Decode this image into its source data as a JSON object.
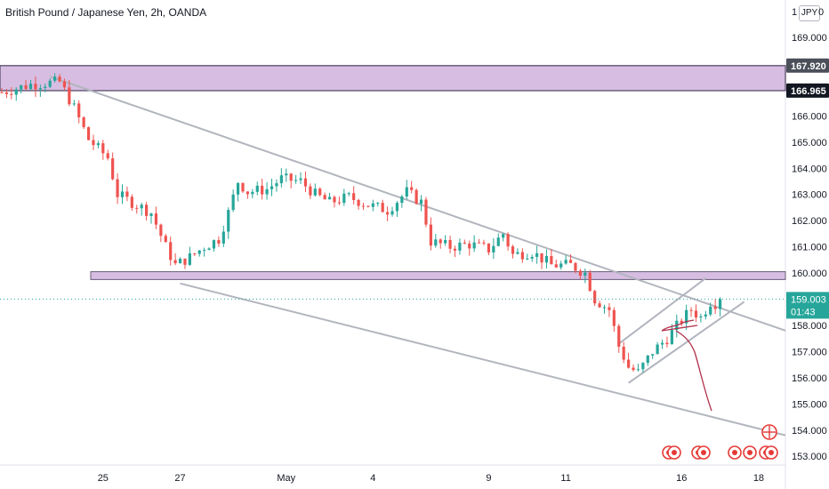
{
  "header": {
    "title": "British Pound / Japanese Yen, 2h, OANDA",
    "currency_badge": "JPY",
    "currency_badge_suffix": "0",
    "top_tick": "1"
  },
  "price_label": {
    "value": "159.003",
    "countdown": "01:43"
  },
  "zone_labels": {
    "upper": "167.920",
    "lower": "166.965"
  },
  "colors": {
    "up": "#26a69a",
    "down": "#ef5350",
    "zone": "#d7bde2",
    "zone_border": "#6a5f7a",
    "trend": "#b2b5be",
    "scribble": "#b0304a",
    "price_line": "#26a69a",
    "marker": "#e53935"
  },
  "chart_data": {
    "type": "candlestick",
    "title": "British Pound / Japanese Yen, 2h, OANDA",
    "y_ticks": [
      153,
      154,
      155,
      156,
      157,
      158,
      159,
      160,
      161,
      162,
      163,
      164,
      165,
      166,
      167,
      169
    ],
    "y_range": [
      152.5,
      170.2
    ],
    "x_ticks": [
      {
        "label": "25",
        "index": 21
      },
      {
        "label": "27",
        "index": 37
      },
      {
        "label": "May",
        "index": 59
      },
      {
        "label": "4",
        "index": 77
      },
      {
        "label": "9",
        "index": 101
      },
      {
        "label": "11",
        "index": 117
      },
      {
        "label": "16",
        "index": 141
      },
      {
        "label": "18",
        "index": 157
      }
    ],
    "candle_count": 150,
    "waypoints": [
      [
        0,
        166.9
      ],
      [
        6,
        167.2
      ],
      [
        12,
        167.3
      ],
      [
        15,
        166.3
      ],
      [
        18,
        165.1
      ],
      [
        22,
        164.4
      ],
      [
        24,
        163.0
      ],
      [
        28,
        162.6
      ],
      [
        31,
        162.3
      ],
      [
        34,
        161.0
      ],
      [
        36,
        160.3
      ],
      [
        39,
        160.6
      ],
      [
        42,
        161.0
      ],
      [
        45,
        161.3
      ],
      [
        47,
        162.3
      ],
      [
        49,
        163.5
      ],
      [
        51,
        163.1
      ],
      [
        55,
        163.2
      ],
      [
        58,
        163.6
      ],
      [
        62,
        163.5
      ],
      [
        65,
        163.0
      ],
      [
        68,
        162.7
      ],
      [
        72,
        162.9
      ],
      [
        76,
        162.6
      ],
      [
        80,
        162.4
      ],
      [
        84,
        163.1
      ],
      [
        87,
        162.7
      ],
      [
        89,
        161.2
      ],
      [
        93,
        161.0
      ],
      [
        97,
        161.1
      ],
      [
        101,
        160.9
      ],
      [
        104,
        161.5
      ],
      [
        106,
        160.7
      ],
      [
        110,
        160.8
      ],
      [
        114,
        160.3
      ],
      [
        118,
        160.3
      ],
      [
        121,
        160.0
      ],
      [
        123,
        159.0
      ],
      [
        126,
        158.6
      ],
      [
        128,
        157.2
      ],
      [
        130,
        156.4
      ],
      [
        132,
        156.2
      ],
      [
        135,
        157.0
      ],
      [
        138,
        157.5
      ],
      [
        141,
        158.2
      ],
      [
        143,
        158.6
      ],
      [
        145,
        158.3
      ],
      [
        147,
        158.9
      ],
      [
        149,
        158.8
      ]
    ],
    "zones": [
      {
        "from": 166.965,
        "to": 167.92
      },
      {
        "from": 159.75,
        "to": 160.05
      }
    ],
    "trendlines": [
      {
        "from": [
          10,
          167.5
        ],
        "to": [
          175,
          157.8
        ]
      },
      {
        "from": [
          37,
          159.6
        ],
        "to": [
          174,
          153.8
        ]
      },
      {
        "from": [
          130,
          155.8
        ],
        "to": [
          154,
          158.9
        ]
      },
      {
        "from": [
          128,
          157.3
        ],
        "to": [
          146,
          159.8
        ]
      }
    ],
    "last_price": 159.003
  }
}
